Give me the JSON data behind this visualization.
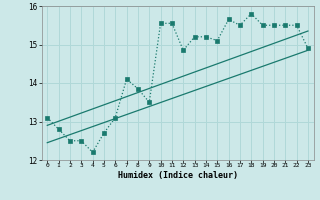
{
  "xlabel": "Humidex (Indice chaleur)",
  "x": [
    0,
    1,
    2,
    3,
    4,
    5,
    6,
    7,
    8,
    9,
    10,
    11,
    12,
    13,
    14,
    15,
    16,
    17,
    18,
    19,
    20,
    21,
    22,
    23
  ],
  "line1": [
    13.1,
    12.8,
    12.5,
    12.5,
    12.2,
    12.7,
    13.1,
    14.1,
    13.85,
    13.5,
    15.55,
    15.55,
    14.85,
    15.2,
    15.2,
    15.1,
    15.65,
    15.5,
    15.8,
    15.5,
    15.5,
    15.5,
    15.5,
    14.9
  ],
  "line2_x": [
    0,
    23
  ],
  "line2_y": [
    12.45,
    14.85
  ],
  "line3_x": [
    0,
    23
  ],
  "line3_y": [
    12.9,
    15.35
  ],
  "main_color": "#1a7a6e",
  "bg_color": "#cce8e8",
  "grid_color": "#b0d8d8",
  "ylim": [
    12.0,
    16.0
  ],
  "xlim": [
    -0.5,
    23.5
  ],
  "yticks": [
    12,
    13,
    14,
    15,
    16
  ],
  "xticks": [
    0,
    1,
    2,
    3,
    4,
    5,
    6,
    7,
    8,
    9,
    10,
    11,
    12,
    13,
    14,
    15,
    16,
    17,
    18,
    19,
    20,
    21,
    22,
    23
  ]
}
